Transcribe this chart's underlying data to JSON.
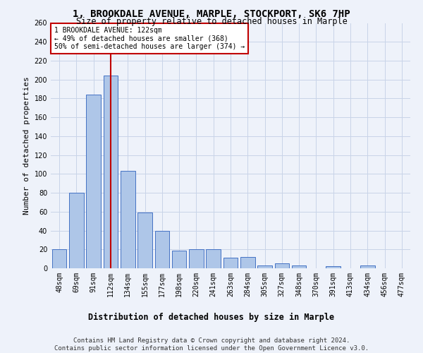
{
  "title": "1, BROOKDALE AVENUE, MARPLE, STOCKPORT, SK6 7HP",
  "subtitle": "Size of property relative to detached houses in Marple",
  "xlabel": "Distribution of detached houses by size in Marple",
  "ylabel": "Number of detached properties",
  "bar_labels": [
    "48sqm",
    "69sqm",
    "91sqm",
    "112sqm",
    "134sqm",
    "155sqm",
    "177sqm",
    "198sqm",
    "220sqm",
    "241sqm",
    "263sqm",
    "284sqm",
    "305sqm",
    "327sqm",
    "348sqm",
    "370sqm",
    "391sqm",
    "413sqm",
    "434sqm",
    "456sqm",
    "477sqm"
  ],
  "bar_values": [
    20,
    80,
    184,
    204,
    103,
    59,
    40,
    19,
    20,
    20,
    11,
    12,
    3,
    5,
    3,
    0,
    2,
    0,
    3,
    0,
    0
  ],
  "bar_color": "#aec6e8",
  "bar_edge_color": "#4472c4",
  "vline_x": 3.0,
  "vline_color": "#c00000",
  "annotation_text": "1 BROOKDALE AVENUE: 122sqm\n← 49% of detached houses are smaller (368)\n50% of semi-detached houses are larger (374) →",
  "annotation_box_color": "#ffffff",
  "annotation_box_edge_color": "#c00000",
  "ylim": [
    0,
    260
  ],
  "yticks": [
    0,
    20,
    40,
    60,
    80,
    100,
    120,
    140,
    160,
    180,
    200,
    220,
    240,
    260
  ],
  "footer_line1": "Contains HM Land Registry data © Crown copyright and database right 2024.",
  "footer_line2": "Contains public sector information licensed under the Open Government Licence v3.0.",
  "bg_color": "#eef2fa",
  "grid_color": "#c8d4e8",
  "title_fontsize": 10,
  "subtitle_fontsize": 8.5,
  "axis_label_fontsize": 8,
  "tick_fontsize": 7,
  "footer_fontsize": 6.5
}
